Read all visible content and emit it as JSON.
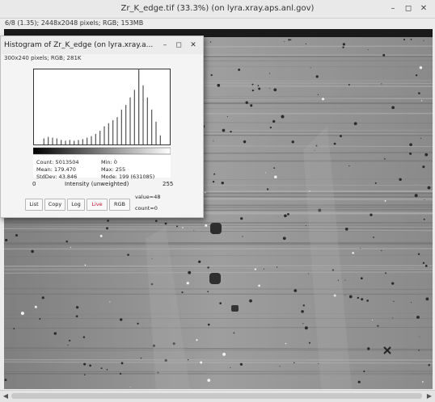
{
  "window": {
    "title": "Zr_K_edge.tif (33.3%) (on lyra.xray.aps.anl.gov)",
    "minimize": "–",
    "maximize": "◻",
    "close": "✕",
    "info": "6/8 (1.35); 2448x2048 pixels; RGB; 153MB"
  },
  "histogram_window": {
    "title": "Histogram of Zr_K_edge (on lyra.xray.a...",
    "minimize": "–",
    "maximize": "◻",
    "close": "✕",
    "info": "300x240 pixels; RGB; 281K",
    "axis_min": "0",
    "axis_label": "Intensity (unweighted)",
    "axis_max": "255",
    "stats": {
      "count": "Count: 5013504",
      "mean": "Mean: 179.470",
      "stddev": "StdDev: 43.846",
      "min": "Min: 0",
      "max": "Max: 255",
      "mode": "Mode: 199 (631085)"
    },
    "buttons": {
      "list": "List",
      "copy": "Copy",
      "log": "Log",
      "live": "Live",
      "rgb": "RGB"
    },
    "value_readout": "value=48",
    "count_readout": "count=0",
    "live_color": "#c8102e"
  },
  "chart_data": {
    "type": "bar",
    "x": [
      20,
      28,
      36,
      44,
      52,
      60,
      68,
      76,
      84,
      92,
      100,
      108,
      116,
      124,
      132,
      140,
      148,
      156,
      164,
      172,
      180,
      188,
      196,
      204,
      212,
      220,
      228,
      236
    ],
    "values": [
      8,
      10,
      9,
      8,
      6,
      5,
      6,
      5,
      6,
      7,
      9,
      11,
      14,
      18,
      24,
      28,
      32,
      36,
      46,
      52,
      62,
      72,
      100,
      78,
      62,
      46,
      30,
      12
    ],
    "xlim": [
      0,
      255
    ],
    "ylim": [
      0,
      100
    ],
    "xlabel": "Intensity (unweighted)",
    "ylabel": ""
  }
}
